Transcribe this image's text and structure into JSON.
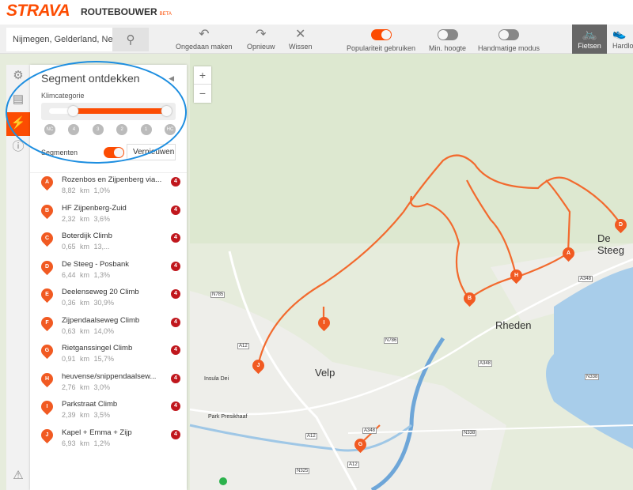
{
  "header": {
    "logo": "STRAVA",
    "app": "ROUTEBOUWER",
    "beta": "BETA"
  },
  "toolbar": {
    "search_value": "Nijmegen, Gelderland, Nederland",
    "undo": "Ongedaan maken",
    "redo": "Opnieuw",
    "clear": "Wissen",
    "popularity": "Populariteit gebruiken",
    "popularity_on": true,
    "min_elevation": "Min. hoogte",
    "min_elevation_on": false,
    "manual": "Handmatige modus",
    "manual_on": false,
    "cycling": "Fietsen",
    "running": "Hardlopen"
  },
  "panel": {
    "title": "Segment ontdekken",
    "climb_label": "Klimcategorie",
    "categories": [
      "NC",
      "4",
      "3",
      "2",
      "1",
      "HC"
    ],
    "range": [
      "4",
      "HC"
    ],
    "segments_label": "Segmenten",
    "segments_on": true,
    "refresh": "Vernieuwen",
    "items": [
      {
        "letter": "A",
        "name": "Rozenbos en Zijpenberg via...",
        "dist": "8,82 km",
        "grade": "1,0%",
        "cat": "4"
      },
      {
        "letter": "B",
        "name": "HF Zijpenberg-Zuid",
        "dist": "2,32 km",
        "grade": "3,6%",
        "cat": "4"
      },
      {
        "letter": "C",
        "name": "Boterdijk Climb",
        "dist": "0,65 km",
        "grade": "13,...",
        "cat": "4"
      },
      {
        "letter": "D",
        "name": "De Steeg - Posbank",
        "dist": "6,44 km",
        "grade": "1,3%",
        "cat": "4"
      },
      {
        "letter": "E",
        "name": "Deelenseweg 20 Climb",
        "dist": "0,36 km",
        "grade": "30,9%",
        "cat": "4"
      },
      {
        "letter": "F",
        "name": "Zijpendaalseweg Climb",
        "dist": "0,63 km",
        "grade": "14,0%",
        "cat": "4"
      },
      {
        "letter": "G",
        "name": "Rietganssingel Climb",
        "dist": "0,91 km",
        "grade": "15,7%",
        "cat": "4"
      },
      {
        "letter": "H",
        "name": "heuvense/snippendaalsew...",
        "dist": "2,76 km",
        "grade": "3,0%",
        "cat": "4"
      },
      {
        "letter": "I",
        "name": "Parkstraat Climb",
        "dist": "2,39 km",
        "grade": "3,5%",
        "cat": "4"
      },
      {
        "letter": "J",
        "name": "Kapel + Emma + Zijp",
        "dist": "6,93 km",
        "grade": "1,2%",
        "cat": "4"
      }
    ]
  },
  "map": {
    "places": [
      "De Steeg",
      "Rheden",
      "Velp",
      "Insula Dei",
      "Park Presikhaaf"
    ],
    "roads": [
      "A348",
      "N785",
      "A12",
      "N786",
      "A348",
      "N338",
      "N338",
      "A12",
      "A348",
      "N325",
      "A12"
    ],
    "markers": [
      "A",
      "B",
      "D",
      "G",
      "H",
      "I",
      "J"
    ]
  },
  "colors": {
    "brand": "#fc4c02",
    "badge": "#c0171d",
    "annotation": "#1d8ee0",
    "water": "#a8cdea"
  }
}
